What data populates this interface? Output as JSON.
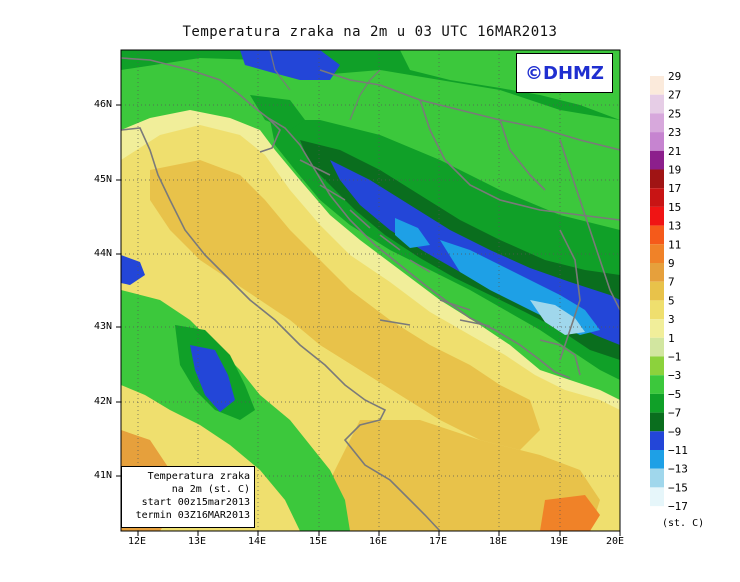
{
  "title": "Temperatura zraka na 2m u 03 UTC 16MAR2013",
  "copyright": "©DHMZ",
  "infobox": {
    "line1": "Temperatura zraka",
    "line2": "na 2m (st. C)",
    "line3": "start 00z15mar2013",
    "line4": "termin 03Z16MAR2013"
  },
  "legend": {
    "units": "(st. C)",
    "labels": [
      "29",
      "27",
      "25",
      "23",
      "21",
      "19",
      "17",
      "15",
      "13",
      "11",
      "9",
      "7",
      "5",
      "3",
      "1",
      "−1",
      "−3",
      "−5",
      "−7",
      "−9",
      "−11",
      "−13",
      "−15",
      "−17"
    ],
    "colors": [
      "#fbeadb",
      "#e6cde6",
      "#d7a8dc",
      "#c684d0",
      "#8c1f8c",
      "#a01414",
      "#c81414",
      "#f01414",
      "#f55a1a",
      "#f08228",
      "#e6a03c",
      "#e8c24a",
      "#efdf6e",
      "#f1ee9a",
      "#d2e6a0",
      "#8cd23c",
      "#3cc83c",
      "#10a028",
      "#0a6e1e",
      "#2346d8",
      "#1ea0e6",
      "#a0d7ec",
      "#e6f6fa",
      "#ffffff"
    ]
  },
  "axes": {
    "y_ticks": [
      "46N",
      "45N",
      "44N",
      "43N",
      "42N",
      "41N"
    ],
    "x_ticks": [
      "12E",
      "13E",
      "14E",
      "15E",
      "16E",
      "17E",
      "18E",
      "19E",
      "20E"
    ]
  },
  "palette": {
    "land_green_light": "#3cc83c",
    "land_green_mid": "#10a028",
    "land_green_dark": "#0a6e1e",
    "cold_blue": "#2346d8",
    "colder_cyan": "#1ea0e6",
    "sea_yellow": "#efdf6e",
    "sea_orange": "#e8c24a",
    "coast_line": "#7a7a7a"
  }
}
